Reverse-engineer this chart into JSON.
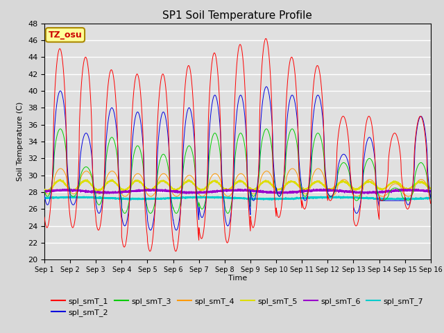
{
  "title": "SP1 Soil Temperature Profile",
  "xlabel": "Time",
  "ylabel": "Soil Temperature (C)",
  "annotation": "TZ_osu",
  "ylim": [
    20,
    48
  ],
  "yticks": [
    20,
    22,
    24,
    26,
    28,
    30,
    32,
    34,
    36,
    38,
    40,
    42,
    44,
    46,
    48
  ],
  "series_colors": {
    "spl_smT_1": "#ff0000",
    "spl_smT_2": "#0000dd",
    "spl_smT_3": "#00cc00",
    "spl_smT_4": "#ff9900",
    "spl_smT_5": "#dddd00",
    "spl_smT_6": "#9900cc",
    "spl_smT_7": "#00cccc"
  },
  "bg_color": "#d8d8d8",
  "plot_bg": "#e0e0e0",
  "grid_color": "#ffffff",
  "n_days": 15,
  "points_per_day": 288,
  "seed": 42
}
